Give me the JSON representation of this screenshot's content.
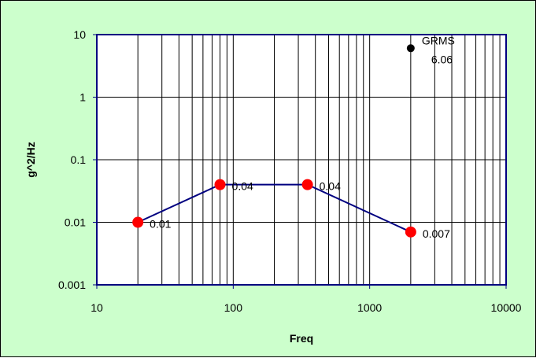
{
  "chart_data": {
    "type": "line",
    "x_scale": "log",
    "y_scale": "log",
    "xlabel": "Freq",
    "ylabel": "g^2/Hz",
    "xlim": [
      10,
      10000
    ],
    "ylim": [
      0.001,
      10
    ],
    "x_ticks": [
      "10",
      "100",
      "1000",
      "10000"
    ],
    "y_ticks": [
      "0.001",
      "0.01",
      "0.1",
      "1",
      "10"
    ],
    "grid": true,
    "legend": "none",
    "series": [
      {
        "x": [
          20,
          80,
          350,
          2000
        ],
        "y": [
          0.01,
          0.04,
          0.04,
          0.007
        ],
        "labels": [
          "0.01",
          "0.04",
          "0.04",
          "0.007"
        ]
      }
    ],
    "annotation": {
      "x": 2000,
      "y": 6.06,
      "label": "GRMS",
      "value": "6.06"
    },
    "colors": {
      "background": "#ccffcc",
      "plot_area": "#ffffff",
      "line": "#000080",
      "markers": "#ff0000",
      "annotation_marker": "#000000",
      "grid": "#000000"
    }
  }
}
